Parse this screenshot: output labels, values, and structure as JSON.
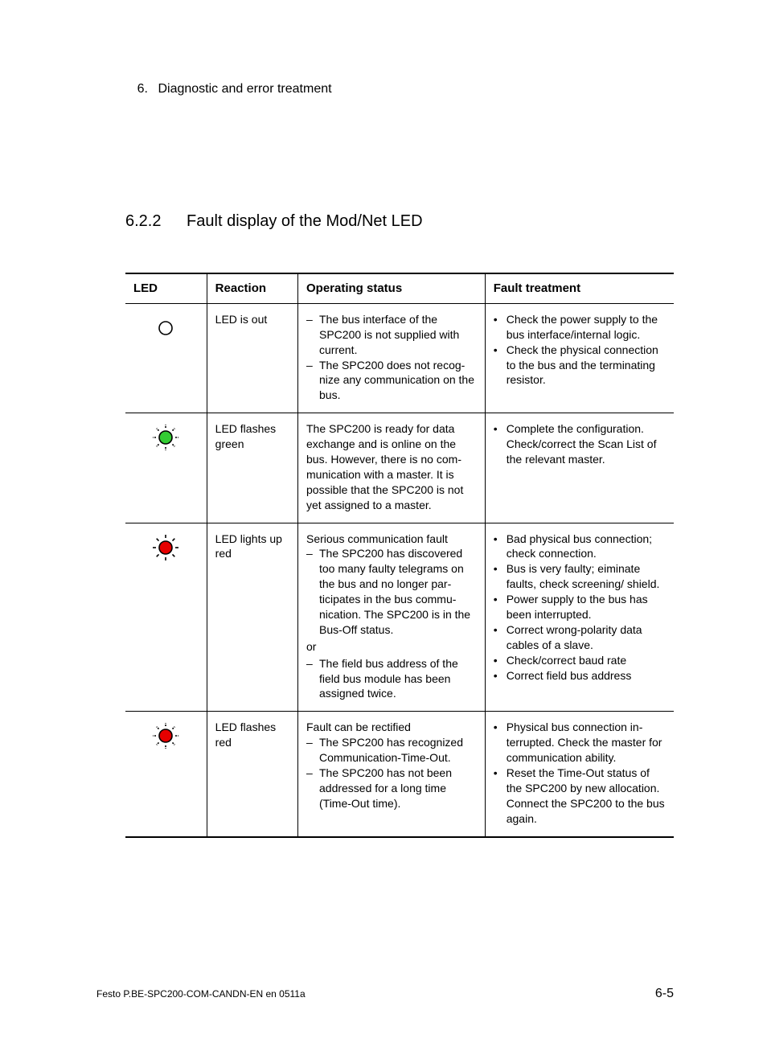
{
  "chapter": {
    "number": "6.",
    "title": "Diagnostic and error treatment"
  },
  "section": {
    "number": "6.2.2",
    "title": "Fault display of the Mod/Net LED"
  },
  "table": {
    "headers": {
      "led": "LED",
      "reaction": "Reaction",
      "operating_status": "Operating status",
      "fault_treatment": "Fault treatment"
    },
    "rows": [
      {
        "led": {
          "type": "off",
          "color": "#ffffff",
          "stroke": "#000000"
        },
        "reaction": "LED is out",
        "operating_status": {
          "intro": null,
          "list_style": "dash",
          "items": [
            "The bus interface of the SPC200 is not supplied with current.",
            "The SPC200 does not recog­nize any communication on the bus."
          ]
        },
        "fault_treatment": {
          "list_style": "bullet",
          "items": [
            "Check the power supply to the bus interface/internal logic.",
            "Check the physical connec­tion to the bus and the terminating resistor."
          ]
        }
      },
      {
        "led": {
          "type": "flash",
          "color": "#33cc33",
          "stroke": "#000000"
        },
        "reaction": "LED flashes green",
        "operating_status": {
          "intro": "The SPC200 is ready for data exchange and is online on the bus. However, there is no com­munication with a master. It is possible that the SPC200 is not yet assigned to a master.",
          "list_style": null,
          "items": []
        },
        "fault_treatment": {
          "list_style": "bullet",
          "items": [
            "Complete the configuration. Check/correct the Scan List of the relevant master."
          ]
        }
      },
      {
        "led": {
          "type": "on",
          "color": "#e60000",
          "stroke": "#000000"
        },
        "reaction": "LED lights up red",
        "operating_status": {
          "intro": "Serious communication fault",
          "list_style": "dash",
          "items": [
            "The SPC200 has discovered too many faulty telegrams on the bus and no longer par­ticipates in the bus commu­nication. The SPC200 is in the Bus-Off status."
          ],
          "mid_text": "or",
          "items2": [
            "The field bus address of the field bus module has been assigned twice."
          ]
        },
        "fault_treatment": {
          "list_style": "bullet",
          "items": [
            "Bad physical bus connection; check connection.",
            "Bus is very faulty; eiminate faults, check screening/ shield.",
            "Power supply to the bus has been interrupted.",
            "Correct wrong-polarity data cables of a slave.",
            "Check/correct baud rate",
            "Correct field bus address"
          ]
        }
      },
      {
        "led": {
          "type": "flash",
          "color": "#e60000",
          "stroke": "#000000"
        },
        "reaction": "LED flashes red",
        "operating_status": {
          "intro": "Fault can be rectified",
          "list_style": "dash",
          "items": [
            "The SPC200 has recognized Communication-Time-Out.",
            "The SPC200 has not been addressed for a long time (Time-Out time)."
          ]
        },
        "fault_treatment": {
          "list_style": "bullet",
          "items": [
            "Physical bus connection in­terrupted. Check the master for communication ability.",
            "Reset the Time-Out status of the SPC200 by new alloca­tion. Connect the SPC200 to the bus again."
          ]
        }
      }
    ]
  },
  "footer": {
    "left": "Festo P.BE-SPC200-COM-CANDN-EN  en 0511a",
    "right": "6-5"
  },
  "colors": {
    "text": "#000000",
    "background": "#ffffff",
    "rule": "#000000"
  }
}
